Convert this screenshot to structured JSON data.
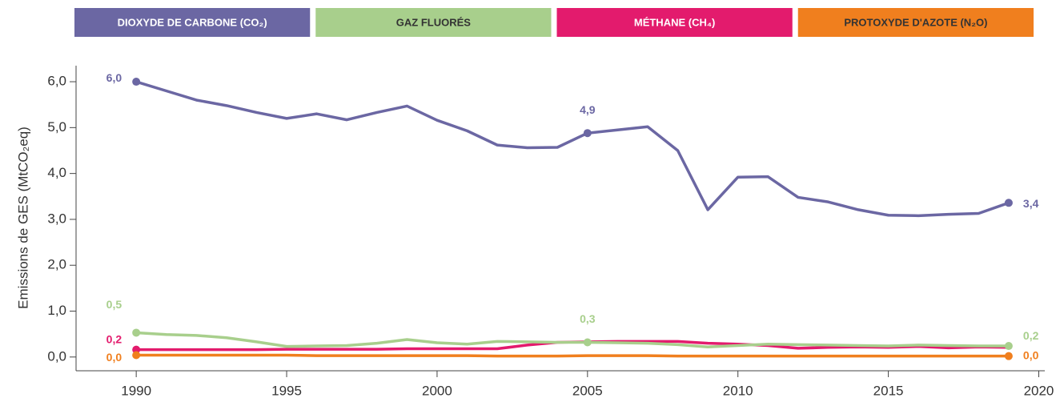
{
  "chart_data": {
    "type": "line",
    "y_label": "Emissions de GES (MtCO₂eq)",
    "x": [
      1990,
      1991,
      1992,
      1993,
      1994,
      1995,
      1996,
      1997,
      1998,
      1999,
      2000,
      2001,
      2002,
      2003,
      2004,
      2005,
      2006,
      2007,
      2008,
      2009,
      2010,
      2011,
      2012,
      2013,
      2014,
      2015,
      2016,
      2017,
      2018,
      2019
    ],
    "series": [
      {
        "name": "DIOXYDE DE CARBONE (CO₂)",
        "color": "#6b67a3",
        "text_color": "#ffffff",
        "values": [
          6.0,
          5.8,
          5.6,
          5.48,
          5.33,
          5.2,
          5.3,
          5.17,
          5.33,
          5.47,
          5.16,
          4.93,
          4.62,
          4.56,
          4.57,
          4.88,
          4.95,
          5.02,
          4.5,
          3.21,
          3.92,
          3.93,
          3.48,
          3.38,
          3.21,
          3.09,
          3.08,
          3.11,
          3.13,
          3.36
        ],
        "value_labels": [
          "6,0",
          null,
          null,
          null,
          null,
          null,
          null,
          null,
          null,
          null,
          null,
          null,
          null,
          null,
          null,
          "4,9",
          null,
          null,
          null,
          null,
          null,
          null,
          null,
          null,
          null,
          null,
          null,
          null,
          null,
          "3,4"
        ]
      },
      {
        "name": "GAZ FLUORÉS",
        "color": "#a8cf8c",
        "text_color": "#333333",
        "values": [
          0.53,
          0.49,
          0.47,
          0.42,
          0.33,
          0.23,
          0.24,
          0.25,
          0.3,
          0.38,
          0.31,
          0.28,
          0.34,
          0.33,
          0.32,
          0.32,
          0.31,
          0.3,
          0.27,
          0.22,
          0.25,
          0.28,
          0.27,
          0.26,
          0.25,
          0.24,
          0.26,
          0.25,
          0.24,
          0.24
        ],
        "value_labels": [
          "0,5",
          null,
          null,
          null,
          null,
          null,
          null,
          null,
          null,
          null,
          null,
          null,
          null,
          null,
          null,
          "0,3",
          null,
          null,
          null,
          null,
          null,
          null,
          null,
          null,
          null,
          null,
          null,
          null,
          null,
          "0,2"
        ]
      },
      {
        "name": "MÉTHANE (CH₄)",
        "color": "#e31b6d",
        "text_color": "#ffffff",
        "values": [
          0.16,
          0.16,
          0.16,
          0.16,
          0.16,
          0.17,
          0.17,
          0.17,
          0.17,
          0.18,
          0.18,
          0.18,
          0.18,
          0.26,
          0.32,
          0.33,
          0.34,
          0.34,
          0.34,
          0.3,
          0.28,
          0.25,
          0.19,
          0.21,
          0.22,
          0.21,
          0.23,
          0.2,
          0.22,
          0.21
        ],
        "value_labels": [
          "0,2",
          null,
          null,
          null,
          null,
          null,
          null,
          null,
          null,
          null,
          null,
          null,
          null,
          null,
          null,
          null,
          null,
          null,
          null,
          null,
          null,
          null,
          null,
          null,
          null,
          null,
          null,
          null,
          null,
          null
        ]
      },
      {
        "name": "PROTOXYDE D'AZOTE (N₂O)",
        "color": "#f07f1e",
        "text_color": "#333333",
        "values": [
          0.04,
          0.04,
          0.04,
          0.04,
          0.04,
          0.04,
          0.03,
          0.03,
          0.03,
          0.03,
          0.03,
          0.03,
          0.02,
          0.02,
          0.02,
          0.03,
          0.03,
          0.03,
          0.02,
          0.02,
          0.02,
          0.02,
          0.02,
          0.02,
          0.02,
          0.02,
          0.02,
          0.02,
          0.02,
          0.02
        ],
        "value_labels": [
          "0,0",
          null,
          null,
          null,
          null,
          null,
          null,
          null,
          null,
          null,
          null,
          null,
          null,
          null,
          null,
          null,
          null,
          null,
          null,
          null,
          null,
          null,
          null,
          null,
          null,
          null,
          null,
          null,
          null,
          "0,0"
        ]
      }
    ],
    "xlim": [
      1988,
      2020.2
    ],
    "xticks": [
      1990,
      1995,
      2000,
      2005,
      2010,
      2015,
      2020
    ],
    "ylim": [
      -0.3,
      6.35
    ],
    "yticks": [
      {
        "value": 0,
        "label": "0,0"
      },
      {
        "value": 1,
        "label": "1,0"
      },
      {
        "value": 2,
        "label": "2,0"
      },
      {
        "value": 3,
        "label": "3,0"
      },
      {
        "value": 4,
        "label": "4,0"
      },
      {
        "value": 5,
        "label": "5,0"
      },
      {
        "value": 6,
        "label": "6,0"
      }
    ],
    "legend": "top"
  }
}
